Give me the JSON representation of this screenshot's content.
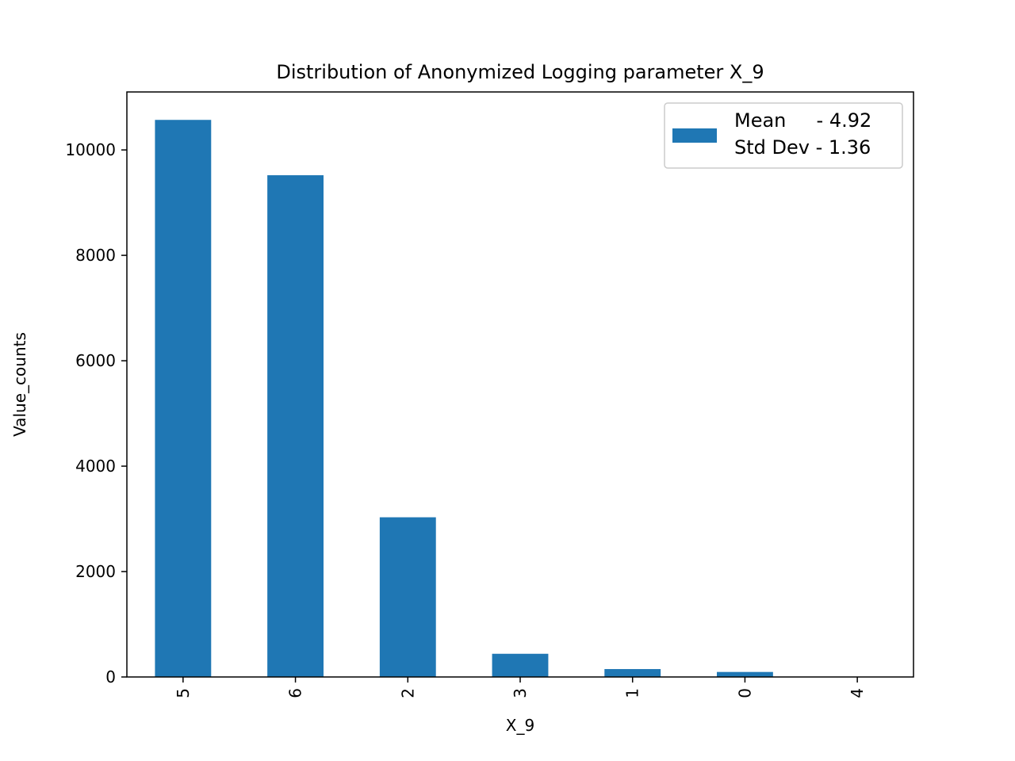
{
  "chart_data": {
    "type": "bar",
    "title": "Distribution of Anonymized Logging parameter X_9",
    "xlabel": "X_9",
    "ylabel": "Value_counts",
    "categories": [
      "5",
      "6",
      "2",
      "3",
      "1",
      "0",
      "4"
    ],
    "values": [
      10570,
      9520,
      3030,
      440,
      150,
      95,
      3
    ],
    "ylim": [
      0,
      11100
    ],
    "yticks": [
      0,
      2000,
      4000,
      6000,
      8000,
      10000
    ],
    "ytick_labels": [
      "0",
      "2000",
      "4000",
      "6000",
      "8000",
      "10000"
    ],
    "bar_color": "#1f77b4",
    "grid": false,
    "legend": {
      "position": "top-right",
      "lines": [
        "Mean     - 4.92",
        "Std Dev - 1.36"
      ]
    }
  }
}
